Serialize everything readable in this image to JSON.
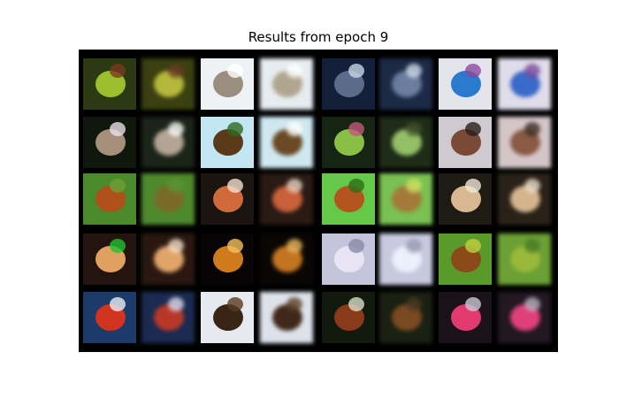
{
  "figure": {
    "title": "Results from epoch 9"
  },
  "grid": {
    "rows": 5,
    "columns": 8,
    "layout": "original / reconstruction pairs",
    "images": [
      {
        "name": "leaves-bird",
        "bg": "#2b3a12",
        "c1": "#9bbf2e",
        "c2": "#7a3a20"
      },
      {
        "name": "leaves-bird",
        "bg": "#3a4010",
        "c1": "#b5b83a",
        "c2": "#6a3a22"
      },
      {
        "name": "deer-white",
        "bg": "#eef2f4",
        "c1": "#9a8e80",
        "c2": "#ffffff"
      },
      {
        "name": "deer-white",
        "bg": "#e6ecef",
        "c1": "#b0a690",
        "c2": "#ffffff"
      },
      {
        "name": "deer-night",
        "bg": "#14203a",
        "c1": "#5a6c8a",
        "c2": "#c9d6e6"
      },
      {
        "name": "deer-night",
        "bg": "#1c2a46",
        "c1": "#6a7d9e",
        "c2": "#d2dcea"
      },
      {
        "name": "truck",
        "bg": "#e4e4ec",
        "c1": "#2a7ad0",
        "c2": "#8a4aa0"
      },
      {
        "name": "truck",
        "bg": "#e0dcea",
        "c1": "#3a6ac8",
        "c2": "#7a4c98"
      },
      {
        "name": "antelope",
        "bg": "#10180e",
        "c1": "#a58f7a",
        "c2": "#e8e0e8"
      },
      {
        "name": "antelope",
        "bg": "#1a2418",
        "c1": "#b4a496",
        "c2": "#ffffff"
      },
      {
        "name": "deer-sky",
        "bg": "#c2e6f2",
        "c1": "#5a3a18",
        "c2": "#2e6a22"
      },
      {
        "name": "deer-sky",
        "bg": "#cfe8f0",
        "c1": "#6a4a24",
        "c2": "#ffffff"
      },
      {
        "name": "bird-dark",
        "bg": "#162412",
        "c1": "#8abf46",
        "c2": "#c0587a"
      },
      {
        "name": "bird-dark",
        "bg": "#1e2c18",
        "c1": "#94bf66",
        "c2": "#42542a"
      },
      {
        "name": "deer-field",
        "bg": "#cfcad0",
        "c1": "#7a4a36",
        "c2": "#2a1f18"
      },
      {
        "name": "deer-field",
        "bg": "#d4c6c8",
        "c1": "#8a5a44",
        "c2": "#3a2a22"
      },
      {
        "name": "deer-grass",
        "bg": "#4a8a2a",
        "c1": "#b0501a",
        "c2": "#6aa036"
      },
      {
        "name": "deer-grass",
        "bg": "#4e8a2c",
        "c1": "#7a6a2a",
        "c2": "#5a9434"
      },
      {
        "name": "deer-red",
        "bg": "#1c1410",
        "c1": "#d06a3a",
        "c2": "#f0e0d0"
      },
      {
        "name": "deer-red",
        "bg": "#2a1a14",
        "c1": "#c8603a",
        "c2": "#e8d2c0"
      },
      {
        "name": "deer-lawn",
        "bg": "#66c848",
        "c1": "#b4541e",
        "c2": "#2e6e1a"
      },
      {
        "name": "deer-lawn",
        "bg": "#7ac052",
        "c1": "#a47a3a",
        "c2": "#d0e060"
      },
      {
        "name": "deer-leaping",
        "bg": "#1e1a14",
        "c1": "#d8b890",
        "c2": "#f0e6d4"
      },
      {
        "name": "deer-leaping",
        "bg": "#2a2218",
        "c1": "#d4b48c",
        "c2": "#ece0cc"
      },
      {
        "name": "dog",
        "bg": "#241410",
        "c1": "#e0a060",
        "c2": "#20c030"
      },
      {
        "name": "dog",
        "bg": "#2a1810",
        "c1": "#e0a468",
        "c2": "#f4e0c8"
      },
      {
        "name": "deer-silhouette",
        "bg": "#060404",
        "c1": "#d07a1e",
        "c2": "#f4c060"
      },
      {
        "name": "deer-silhouette",
        "bg": "#0a0604",
        "c1": "#c27420",
        "c2": "#eab860"
      },
      {
        "name": "frog-pale",
        "bg": "#c4c4dc",
        "c1": "#e8e4f4",
        "c2": "#8a8aa8"
      },
      {
        "name": "frog-pale",
        "bg": "#c8c8de",
        "c1": "#ecf0fa",
        "c2": "#9a9ab4"
      },
      {
        "name": "deer-green",
        "bg": "#5a9a2a",
        "c1": "#8a4a1a",
        "c2": "#c0d040"
      },
      {
        "name": "deer-green",
        "bg": "#6aa034",
        "c1": "#9ab83a",
        "c2": "#4a7a24"
      },
      {
        "name": "firetruck",
        "bg": "#1c3a6a",
        "c1": "#d0341e",
        "c2": "#e8eef4"
      },
      {
        "name": "firetruck",
        "bg": "#1a2a50",
        "c1": "#b83828",
        "c2": "#dcdcec"
      },
      {
        "name": "bear",
        "bg": "#e6eaf0",
        "c1": "#3a2416",
        "c2": "#5a3a22"
      },
      {
        "name": "bear",
        "bg": "#dde2ea",
        "c1": "#40281a",
        "c2": "#5e4028"
      },
      {
        "name": "horse",
        "bg": "#121a0e",
        "c1": "#8a3a1a",
        "c2": "#d8dcc8"
      },
      {
        "name": "horse",
        "bg": "#1a2012",
        "c1": "#7a4a22",
        "c2": "#4a3a20"
      },
      {
        "name": "pink-object",
        "bg": "#1a1218",
        "c1": "#e03a70",
        "c2": "#c8c8d4"
      },
      {
        "name": "pink-object",
        "bg": "#221822",
        "c1": "#e0407a",
        "c2": "#b8b0c0"
      }
    ]
  }
}
